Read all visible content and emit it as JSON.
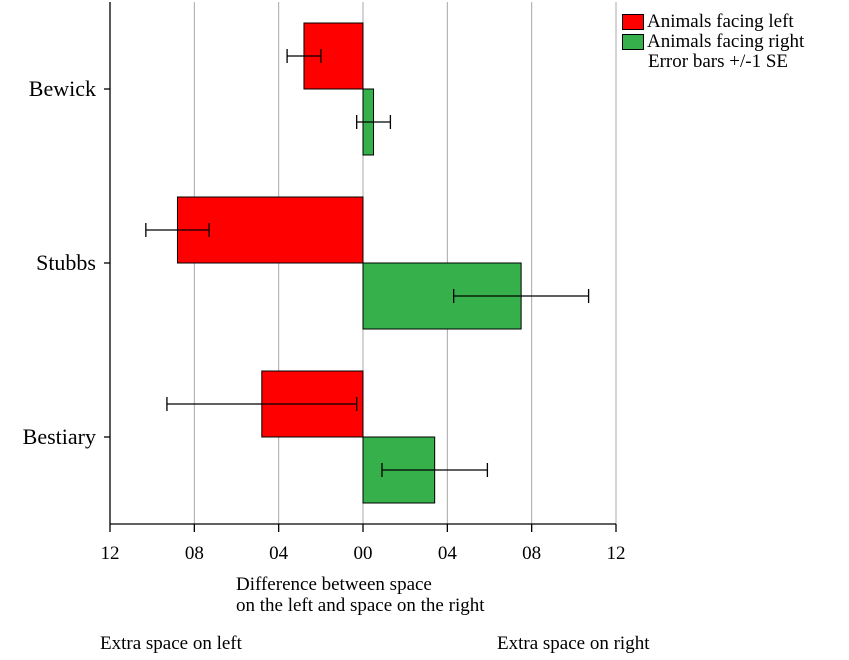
{
  "chart_data": {
    "type": "bar",
    "orientation": "horizontal",
    "categories": [
      "Bewick",
      "Stubbs",
      "Bestiary"
    ],
    "series": [
      {
        "name": "Animals facing left",
        "color": "#ff0000",
        "values": [
          -0.28,
          -0.88,
          -0.48
        ],
        "se": [
          0.08,
          0.15,
          0.45
        ]
      },
      {
        "name": "Animals facing right",
        "color": "#35b04a",
        "values": [
          0.05,
          0.75,
          0.34
        ],
        "se": [
          0.08,
          0.32,
          0.25
        ]
      }
    ],
    "xlim": [
      -1.2,
      1.2
    ],
    "xticks": [
      -1.2,
      -0.8,
      -0.4,
      0,
      0.4,
      0.8,
      1.2
    ],
    "xtick_labels": [
      "12",
      "08",
      "04",
      "00",
      "04",
      "08",
      "12"
    ],
    "grid": true,
    "legend_position": "top-right",
    "legend_note": "Error bars +/-1 SE",
    "xlabel_line1": "Difference between space",
    "xlabel_line2": "on the left and space on the right",
    "left_annotation": "Extra space on left",
    "right_annotation": "Extra space on right"
  }
}
